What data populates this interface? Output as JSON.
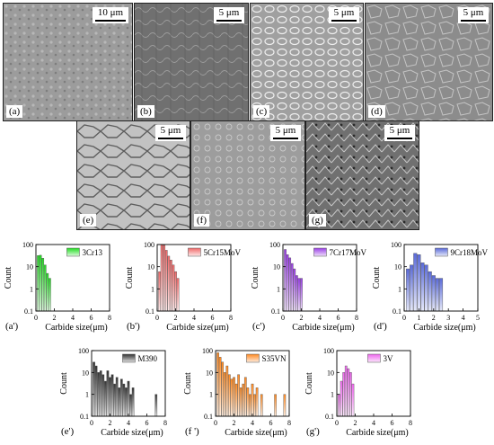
{
  "micrographs": [
    {
      "label": "(a)",
      "scale": "10 μm"
    },
    {
      "label": "(b)",
      "scale": "5 μm"
    },
    {
      "label": "(c)",
      "scale": "5 μm"
    },
    {
      "label": "(d)",
      "scale": "5 μm"
    },
    {
      "label": "(e)",
      "scale": "5 μm"
    },
    {
      "label": "(f)",
      "scale": "5 μm"
    },
    {
      "label": "(g)",
      "scale": "5 μm"
    }
  ],
  "chart_data": [
    {
      "type": "bar",
      "label": "(a')",
      "legend": "3Cr13",
      "color": "#22dd22",
      "xlabel": "Carbide size(μm)",
      "ylabel": "Count",
      "xlim": [
        0,
        8
      ],
      "ylim": [
        0.1,
        100
      ],
      "ylog": true,
      "xticks": [
        0,
        2,
        4,
        6,
        8
      ],
      "yticks": [
        {
          "v": 0.1,
          "t": "0.1"
        },
        {
          "v": 1,
          "t": "1"
        },
        {
          "v": 10,
          "t": "10"
        },
        {
          "v": 100,
          "t": "100"
        }
      ],
      "x": [
        0.25,
        0.5,
        0.75,
        1.0,
        1.25,
        1.5
      ],
      "values": [
        32,
        33,
        24,
        12,
        5,
        3
      ]
    },
    {
      "type": "bar",
      "label": "(b')",
      "legend": "5Cr15MoV",
      "color": "#f06a6a",
      "xlabel": "Carbide size(μm)",
      "ylabel": "Count",
      "xlim": [
        0,
        8
      ],
      "ylim": [
        0.1,
        100
      ],
      "ylog": true,
      "xticks": [
        0,
        2,
        4,
        6,
        8
      ],
      "yticks": [
        {
          "v": 0.1,
          "t": "0.1"
        },
        {
          "v": 1,
          "t": "1"
        },
        {
          "v": 10,
          "t": "10"
        },
        {
          "v": 100,
          "t": "100"
        }
      ],
      "x": [
        0.25,
        0.5,
        0.75,
        1.0,
        1.25,
        1.5,
        1.75,
        2.0,
        2.25
      ],
      "values": [
        6,
        120,
        95,
        55,
        30,
        20,
        12,
        6,
        3
      ]
    },
    {
      "type": "bar",
      "label": "(c')",
      "legend": "7Cr17MoV",
      "color": "#9a3ee6",
      "xlabel": "Carbide size(μm)",
      "ylabel": "Count",
      "xlim": [
        0,
        8
      ],
      "ylim": [
        0.1,
        100
      ],
      "ylog": true,
      "xticks": [
        0,
        2,
        4,
        6,
        8
      ],
      "yticks": [
        {
          "v": 0.1,
          "t": "0.1"
        },
        {
          "v": 1,
          "t": "1"
        },
        {
          "v": 10,
          "t": "10"
        },
        {
          "v": 100,
          "t": "100"
        }
      ],
      "x": [
        0.25,
        0.5,
        0.75,
        1.0,
        1.25,
        1.5,
        1.75,
        2.0
      ],
      "values": [
        60,
        35,
        25,
        14,
        8,
        4,
        3,
        3
      ]
    },
    {
      "type": "bar",
      "label": "(d')",
      "legend": "9Cr18MoV",
      "color": "#5a6ad8",
      "xlabel": "Carbide size(μm)",
      "ylabel": "Count",
      "xlim": [
        0,
        5
      ],
      "ylim": [
        0.1,
        100
      ],
      "ylog": true,
      "xticks": [
        0,
        1,
        2,
        3,
        4,
        5
      ],
      "yticks": [
        {
          "v": 0.1,
          "t": "0.1"
        },
        {
          "v": 1,
          "t": "1"
        },
        {
          "v": 10,
          "t": "10"
        },
        {
          "v": 100,
          "t": "100"
        }
      ],
      "x": [
        0.25,
        0.5,
        0.75,
        1.0,
        1.25,
        1.5,
        1.75,
        2.0,
        2.25,
        2.5
      ],
      "values": [
        8,
        12,
        40,
        35,
        15,
        12,
        6,
        4,
        3,
        3
      ]
    },
    {
      "type": "bar",
      "label": "(e')",
      "legend": "M390",
      "color": "#333333",
      "xlabel": "Carbide size(μm)",
      "ylabel": "Count",
      "xlim": [
        0,
        8
      ],
      "ylim": [
        0.1,
        100
      ],
      "ylog": true,
      "xticks": [
        0,
        2,
        4,
        6,
        8
      ],
      "yticks": [
        {
          "v": 0.1,
          "t": "0.1"
        },
        {
          "v": 1,
          "t": "1"
        },
        {
          "v": 10,
          "t": "10"
        },
        {
          "v": 100,
          "t": "100"
        }
      ],
      "x": [
        0.25,
        0.5,
        0.75,
        1.0,
        1.25,
        1.5,
        1.75,
        2.0,
        2.25,
        2.5,
        2.75,
        3.0,
        3.25,
        3.5,
        3.75,
        4.0,
        4.25,
        4.5,
        7.0
      ],
      "values": [
        30,
        20,
        10,
        12,
        8,
        4,
        12,
        6,
        8,
        3,
        6,
        2,
        5,
        3,
        2,
        4,
        1,
        2,
        1
      ]
    },
    {
      "type": "bar",
      "label": "(f ')",
      "legend": "S35VN",
      "color": "#ff8a22",
      "xlabel": "Carbide size(μm)",
      "ylabel": "Count",
      "xlim": [
        0,
        8
      ],
      "ylim": [
        0.1,
        100
      ],
      "ylog": true,
      "xticks": [
        0,
        2,
        4,
        6,
        8
      ],
      "yticks": [
        {
          "v": 0.1,
          "t": "0.1"
        },
        {
          "v": 1,
          "t": "1"
        },
        {
          "v": 10,
          "t": "10"
        },
        {
          "v": 100,
          "t": "100"
        }
      ],
      "x": [
        0.25,
        0.5,
        0.75,
        1.0,
        1.25,
        1.5,
        1.75,
        2.0,
        2.25,
        2.5,
        2.75,
        3.0,
        3.25,
        3.5,
        3.75,
        4.0,
        4.25,
        4.5,
        5.0,
        6.5,
        7.5
      ],
      "values": [
        80,
        50,
        30,
        10,
        20,
        8,
        5,
        6,
        3,
        8,
        2,
        3,
        6,
        2,
        1,
        3,
        1,
        2,
        1,
        1,
        1
      ]
    },
    {
      "type": "bar",
      "label": "(g')",
      "legend": "3V",
      "color": "#ee66ee",
      "xlabel": "Carbide size(μm)",
      "ylabel": "Count",
      "xlim": [
        0,
        8
      ],
      "ylim": [
        0.1,
        100
      ],
      "ylog": true,
      "xticks": [
        0,
        2,
        4,
        6,
        8
      ],
      "yticks": [
        {
          "v": 0.1,
          "t": "0.1"
        },
        {
          "v": 1,
          "t": "1"
        },
        {
          "v": 10,
          "t": "10"
        },
        {
          "v": 100,
          "t": "100"
        }
      ],
      "x": [
        0.25,
        0.5,
        0.75,
        1.0,
        1.25,
        1.5,
        1.75
      ],
      "values": [
        1,
        4,
        10,
        20,
        15,
        10,
        3
      ]
    }
  ]
}
